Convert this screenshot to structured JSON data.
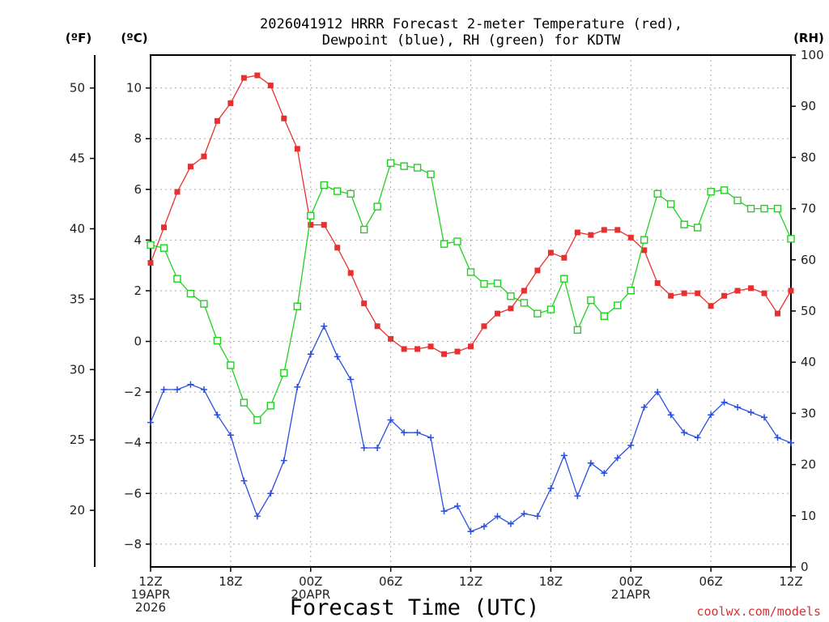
{
  "chart_data": {
    "type": "line",
    "title_lines": [
      "2026041912 HRRR Forecast 2-meter Temperature (red),",
      "Dewpoint (blue), RH (green) for KDTW"
    ],
    "xlabel": "Forecast Time (UTC)",
    "credit": "coolwx.com/models",
    "units": {
      "fahrenheit": "(ºF)",
      "celsius": "(ºC)",
      "rh": "(RH)"
    },
    "x_ticks": [
      {
        "hour": 0,
        "lines": [
          "12Z",
          "19APR",
          "2026"
        ]
      },
      {
        "hour": 6,
        "lines": [
          "18Z"
        ]
      },
      {
        "hour": 12,
        "lines": [
          "00Z",
          "20APR"
        ]
      },
      {
        "hour": 18,
        "lines": [
          "06Z"
        ]
      },
      {
        "hour": 24,
        "lines": [
          "12Z"
        ]
      },
      {
        "hour": 30,
        "lines": [
          "18Z"
        ]
      },
      {
        "hour": 36,
        "lines": [
          "00Z",
          "21APR"
        ]
      },
      {
        "hour": 42,
        "lines": [
          "06Z"
        ]
      },
      {
        "hour": 48,
        "lines": [
          "12Z"
        ]
      }
    ],
    "x_range": [
      0,
      48
    ],
    "y_left_c_range": [
      -8.9,
      11.3
    ],
    "y_left_c_ticks": [
      -8,
      -6,
      -4,
      -2,
      0,
      2,
      4,
      6,
      8,
      10
    ],
    "y_left_f_ticks": [
      20,
      25,
      30,
      35,
      40,
      45,
      50
    ],
    "y_right_rh_range": [
      0,
      100
    ],
    "y_right_rh_ticks": [
      0,
      10,
      20,
      30,
      40,
      50,
      60,
      70,
      80,
      90,
      100
    ],
    "grid": true,
    "series": [
      {
        "name": "Temperature (red)",
        "axis": "celsius",
        "color": "#e83030",
        "marker": "filled-square",
        "values": [
          3.1,
          4.5,
          5.9,
          6.9,
          7.3,
          8.7,
          9.4,
          10.4,
          10.5,
          10.1,
          8.8,
          7.6,
          4.6,
          4.6,
          3.7,
          2.7,
          1.5,
          0.6,
          0.1,
          -0.3,
          -0.3,
          -0.2,
          -0.5,
          -0.4,
          -0.2,
          0.6,
          1.1,
          1.3,
          2.0,
          2.8,
          3.5,
          3.3,
          4.3,
          4.2,
          4.4,
          4.4,
          4.1,
          3.6,
          2.3,
          1.8,
          1.9,
          1.9,
          1.4,
          1.8,
          2.0,
          2.1,
          1.9,
          1.1,
          2.0
        ]
      },
      {
        "name": "Dewpoint (blue)",
        "axis": "celsius",
        "color": "#2a4fe0",
        "marker": "plus",
        "values": [
          -3.2,
          -1.9,
          -1.9,
          -1.7,
          -1.9,
          -2.9,
          -3.7,
          -5.5,
          -6.9,
          -6.0,
          -4.7,
          -1.8,
          -0.5,
          0.6,
          -0.6,
          -1.5,
          -4.2,
          -4.2,
          -3.1,
          -3.6,
          -3.6,
          -3.8,
          -6.7,
          -6.5,
          -7.5,
          -7.3,
          -6.9,
          -7.2,
          -6.8,
          -6.9,
          -5.8,
          -4.5,
          -6.1,
          -4.8,
          -5.2,
          -4.6,
          -4.1,
          -2.6,
          -2.0,
          -2.9,
          -3.6,
          -3.8,
          -2.9,
          -2.4,
          -2.6,
          -2.8,
          -3.0,
          -3.8,
          -4.0
        ]
      },
      {
        "name": "RH (green)",
        "axis": "rh",
        "color": "#22d022",
        "marker": "open-square",
        "values": [
          62.9,
          62.3,
          56.3,
          53.4,
          51.4,
          44.2,
          39.4,
          32.1,
          28.7,
          31.5,
          37.9,
          50.9,
          68.6,
          74.6,
          73.4,
          72.9,
          65.9,
          70.4,
          78.9,
          78.3,
          78.0,
          76.7,
          63.1,
          63.6,
          57.6,
          55.3,
          55.4,
          52.9,
          51.6,
          49.5,
          50.3,
          56.3,
          46.3,
          52.1,
          49.0,
          51.1,
          54.0,
          63.9,
          72.9,
          70.9,
          66.9,
          66.3,
          73.3,
          73.6,
          71.6,
          70.0,
          70.0,
          70.0,
          64.1
        ]
      }
    ]
  }
}
